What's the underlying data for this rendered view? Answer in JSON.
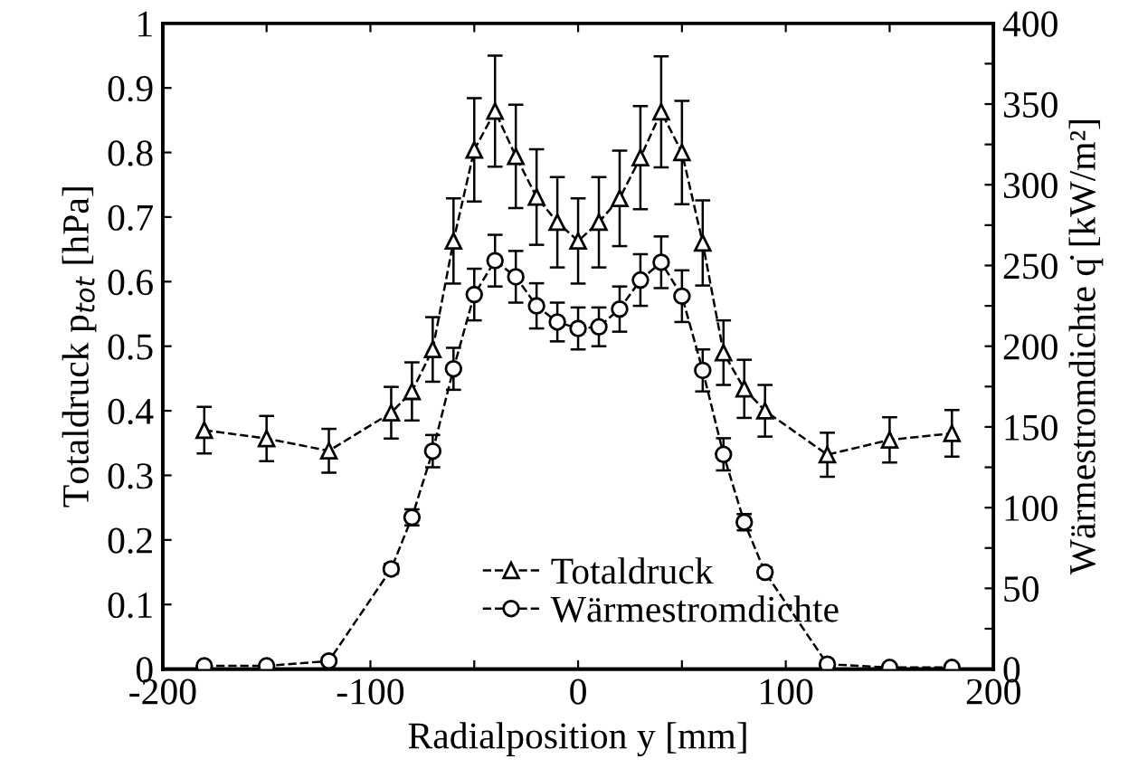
{
  "chart_data": {
    "type": "line",
    "xlabel": "Radialposition y [mm]",
    "ylabel": "Totaldruck p$_{tot}$ [hPa]",
    "y2label": "Wärmestromdichte q̇ [kW/m²]",
    "x": [
      -180,
      -150,
      -120,
      -90,
      -80,
      -70,
      -60,
      -50,
      -40,
      -30,
      -20,
      -10,
      0,
      10,
      20,
      30,
      40,
      50,
      60,
      70,
      80,
      90,
      120,
      150,
      180
    ],
    "series": [
      {
        "name": "Totaldruck",
        "color": "#000000",
        "marker": "triangle",
        "line_style": "dashed",
        "values": [
          0.37,
          0.357,
          0.338,
          0.397,
          0.43,
          0.495,
          0.663,
          0.804,
          0.864,
          0.794,
          0.731,
          0.692,
          0.663,
          0.692,
          0.729,
          0.792,
          0.863,
          0.8,
          0.66,
          0.49,
          0.434,
          0.4,
          0.332,
          0.355,
          0.365
        ],
        "errors": [
          0.036,
          0.035,
          0.034,
          0.04,
          0.045,
          0.05,
          0.066,
          0.08,
          0.086,
          0.08,
          0.074,
          0.07,
          0.066,
          0.07,
          0.074,
          0.08,
          0.086,
          0.08,
          0.066,
          0.05,
          0.045,
          0.04,
          0.034,
          0.035,
          0.036
        ]
      },
      {
        "name": "Wärmestromdichte",
        "color": "#000000",
        "marker": "circle",
        "line_style": "dashed",
        "axis": "y2",
        "values": [
          2,
          2,
          5,
          62,
          94,
          135,
          186,
          232,
          253,
          243,
          225,
          215,
          211,
          212,
          223,
          241,
          252,
          231,
          185,
          133,
          91,
          60,
          3,
          1,
          1
        ],
        "errors": [
          null,
          null,
          null,
          3,
          5,
          10,
          13,
          16,
          16,
          16,
          14,
          12,
          13,
          12,
          14,
          16,
          16,
          16,
          13,
          10,
          5,
          3,
          null,
          null,
          null
        ]
      }
    ],
    "xlim": [
      -200,
      200
    ],
    "xticks": [
      -200,
      {
        "value": -150,
        "label": null
      },
      -100,
      {
        "value": -50,
        "label": null
      },
      0,
      {
        "value": 50,
        "label": null
      },
      100,
      {
        "value": 150,
        "label": null
      },
      200
    ],
    "ylim": [
      0,
      1
    ],
    "yticks": [
      0,
      0.1,
      0.2,
      0.3,
      0.4,
      0.5,
      0.6,
      0.7,
      0.8,
      0.9,
      1
    ],
    "y2lim": [
      0,
      400
    ],
    "y2ticks": [
      0,
      {
        "value": 25,
        "label": null
      },
      50,
      {
        "value": 75,
        "label": null
      },
      100,
      {
        "value": 125,
        "label": null
      },
      150,
      {
        "value": 175,
        "label": null
      },
      200,
      {
        "value": 225,
        "label": null
      },
      250,
      {
        "value": 275,
        "label": null
      },
      300,
      {
        "value": 325,
        "label": null
      },
      350,
      {
        "value": 375,
        "label": null
      },
      400
    ],
    "legend": "bottom",
    "grid": false
  }
}
